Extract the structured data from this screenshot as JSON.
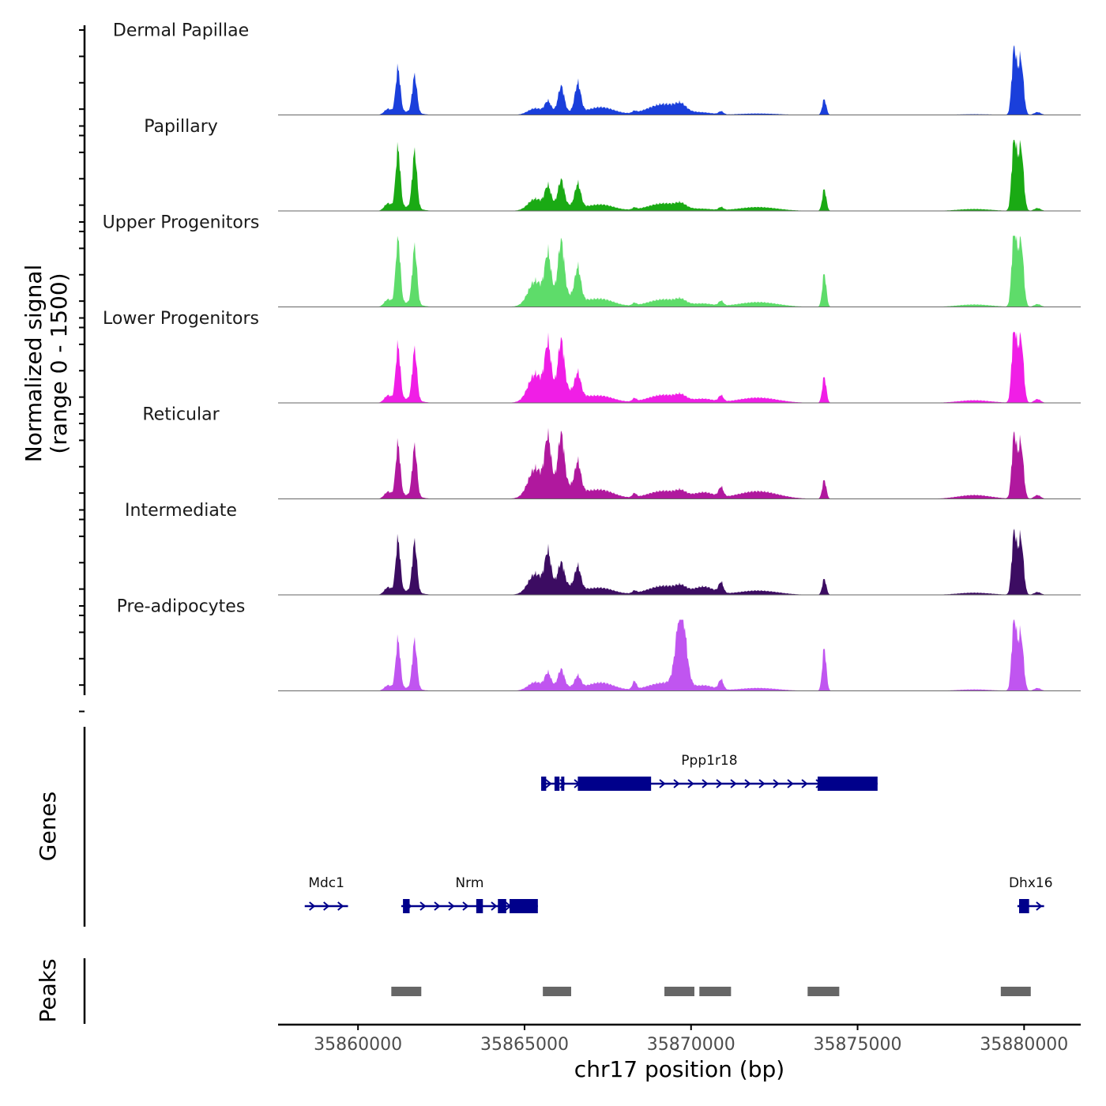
{
  "chart_data": {
    "type": "area",
    "title": "",
    "chromosome": "chr17",
    "xlim": [
      35857600,
      35881700
    ],
    "xlabel": "chr17 position (bp)",
    "ylabel": "Normalized signal\n(range 0 - 1500)",
    "ylim": [
      0,
      1500
    ],
    "x_ticks": [
      35860000,
      35865000,
      35870000,
      35875000,
      35880000
    ],
    "x_tick_labels": [
      "35860000",
      "35865000",
      "35870000",
      "35875000",
      "35880000"
    ],
    "peak_positions": [
      35861200,
      35861700,
      35865700,
      35866100,
      35866600,
      35868300,
      35869700,
      35870900,
      35874000,
      35879700,
      35879900
    ],
    "tracks": [
      {
        "name": "Dermal Papillae",
        "color": "#1a3fdb",
        "values": [
          120,
          930,
          770,
          220,
          530,
          600,
          160,
          70,
          230,
          40,
          80,
          30,
          330,
          1380,
          1180,
          30
        ]
      },
      {
        "name": "Papillary",
        "color": "#1aaa14",
        "values": [
          150,
          1250,
          1170,
          400,
          520,
          480,
          130,
          70,
          160,
          50,
          70,
          80,
          460,
          1540,
          1380,
          30
        ]
      },
      {
        "name": "Upper Progenitors",
        "color": "#5edc6a",
        "values": [
          150,
          1400,
          1190,
          850,
          1100,
          660,
          160,
          90,
          160,
          70,
          120,
          100,
          700,
          1640,
          1430,
          30
        ]
      },
      {
        "name": "Lower Progenitors",
        "color": "#f01ee6",
        "values": [
          150,
          1140,
          1050,
          950,
          1000,
          450,
          140,
          110,
          170,
          90,
          150,
          110,
          550,
          1590,
          1400,
          40
        ]
      },
      {
        "name": "Reticular",
        "color": "#b0189e",
        "values": [
          140,
          1100,
          1040,
          1000,
          1030,
          580,
          180,
          140,
          170,
          120,
          250,
          160,
          400,
          1330,
          1180,
          40
        ]
      },
      {
        "name": "Intermediate",
        "color": "#3c0c62",
        "values": [
          150,
          1100,
          1040,
          690,
          450,
          460,
          140,
          90,
          190,
          70,
          320,
          90,
          340,
          1300,
          1200,
          30
        ]
      },
      {
        "name": "Pre-adipocytes",
        "color": "#c055f0",
        "values": [
          110,
          1030,
          1000,
          290,
          360,
          240,
          170,
          880,
          170,
          1120,
          210,
          60,
          900,
          1530,
          1200,
          30
        ]
      }
    ],
    "genes": [
      {
        "name": "Ppp1r18",
        "start": 35865500,
        "end": 35875600,
        "row": 1,
        "strand": "+",
        "exons": [
          [
            35865500,
            35865650
          ],
          [
            35865900,
            35866050
          ],
          [
            35866100,
            35866180
          ],
          [
            35866600,
            35868800
          ],
          [
            35873800,
            35875600
          ]
        ]
      },
      {
        "name": "Mdc1",
        "start": 35858400,
        "end": 35859700,
        "row": 2,
        "strand": "+",
        "exons": []
      },
      {
        "name": "Nrm",
        "start": 35861300,
        "end": 35865400,
        "row": 2,
        "strand": "+",
        "exons": [
          [
            35861350,
            35861550
          ],
          [
            35863550,
            35863750
          ],
          [
            35864200,
            35864450
          ],
          [
            35864550,
            35865400
          ]
        ]
      },
      {
        "name": "Dhx16",
        "start": 35879800,
        "end": 35880600,
        "row": 2,
        "strand": "+",
        "exons": [
          [
            35879850,
            35880150
          ]
        ]
      }
    ],
    "peaks": [
      [
        35861000,
        35861900
      ],
      [
        35865550,
        35866400
      ],
      [
        35869200,
        35870100
      ],
      [
        35870250,
        35871200
      ],
      [
        35873500,
        35874450
      ],
      [
        35879300,
        35880200
      ]
    ],
    "panel_labels": {
      "genes": "Genes",
      "peaks": "Peaks"
    }
  }
}
